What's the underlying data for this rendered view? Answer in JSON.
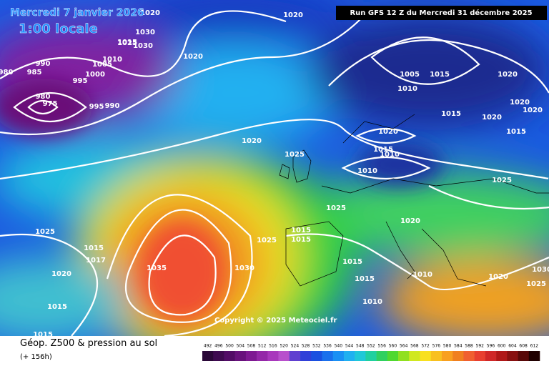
{
  "header": {
    "date": "Mercredi 7 janvier 2026",
    "time": "1:00 locale",
    "run": "Run GFS 12 Z du Mercredi 31 décembre 2025"
  },
  "footer": {
    "copyright": "Copyright © 2025 Meteociel.fr",
    "title": "Géop. Z500 & pression au sol",
    "step": "(+ 156h)"
  },
  "isobar_labels": [
    "980",
    "985",
    "990",
    "995",
    "1000",
    "1005",
    "1010",
    "1015",
    "1025",
    "1030",
    "1030",
    "1020",
    "1020",
    "1020",
    "980",
    "975",
    "995",
    "990",
    "1020",
    "1025",
    "1005",
    "1015",
    "1020",
    "1010",
    "1015",
    "1020",
    "1020",
    "1020",
    "1020",
    "1015",
    "1010",
    "1010",
    "1015",
    "1025",
    "1025",
    "1020",
    "1025",
    "1025",
    "1015",
    "1015",
    "1015",
    "1017",
    "1030",
    "1035",
    "1020",
    "1015",
    "1015",
    "1010",
    "1020",
    "1030",
    "1025",
    "1015",
    "1010",
    "1015"
  ],
  "scale": [
    {
      "label": "492",
      "color": "#2a0838"
    },
    {
      "label": "496",
      "color": "#3e0a50"
    },
    {
      "label": "500",
      "color": "#520c66"
    },
    {
      "label": "504",
      "color": "#68127c"
    },
    {
      "label": "508",
      "color": "#7e1a92"
    },
    {
      "label": "512",
      "color": "#9428a8"
    },
    {
      "label": "516",
      "color": "#a838bc"
    },
    {
      "label": "520",
      "color": "#b850cc"
    },
    {
      "label": "524",
      "color": "#6040d0"
    },
    {
      "label": "528",
      "color": "#3040d8"
    },
    {
      "label": "532",
      "color": "#1a50e0"
    },
    {
      "label": "536",
      "color": "#1a70ec"
    },
    {
      "label": "540",
      "color": "#1a90f4"
    },
    {
      "label": "544",
      "color": "#20b0f0"
    },
    {
      "label": "548",
      "color": "#20c8d8"
    },
    {
      "label": "552",
      "color": "#20d0a0"
    },
    {
      "label": "556",
      "color": "#30d060"
    },
    {
      "label": "560",
      "color": "#50d830"
    },
    {
      "label": "564",
      "color": "#90e020"
    },
    {
      "label": "568",
      "color": "#d0e820"
    },
    {
      "label": "572",
      "color": "#f8e020"
    },
    {
      "label": "576",
      "color": "#f8c020"
    },
    {
      "label": "580",
      "color": "#f8a020"
    },
    {
      "label": "584",
      "color": "#f08020"
    },
    {
      "label": "588",
      "color": "#f06030"
    },
    {
      "label": "592",
      "color": "#e84030"
    },
    {
      "label": "596",
      "color": "#d02828"
    },
    {
      "label": "600",
      "color": "#b01818"
    },
    {
      "label": "604",
      "color": "#881010"
    },
    {
      "label": "608",
      "color": "#580808"
    },
    {
      "label": "612",
      "color": "#200000"
    }
  ]
}
